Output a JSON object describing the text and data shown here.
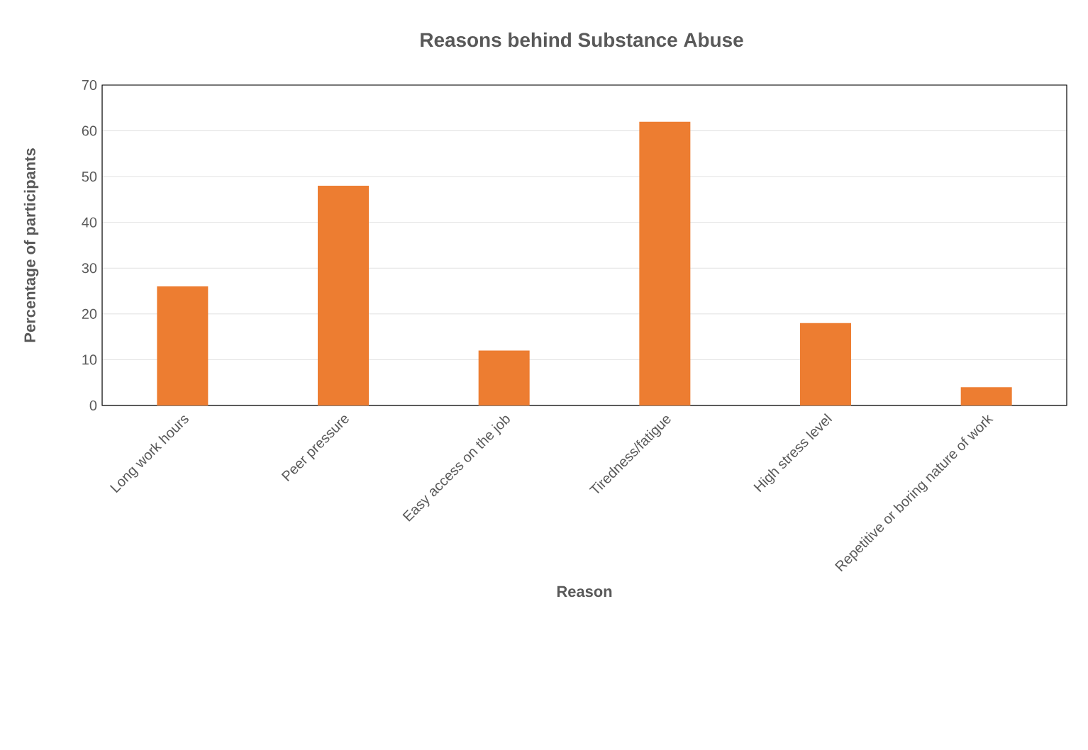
{
  "chart_data": {
    "type": "bar",
    "title": "Reasons behind Substance Abuse",
    "xlabel": "Reason",
    "ylabel": "Percentage of participants",
    "categories": [
      "Long work hours",
      "Peer pressure",
      "Easy access on the job",
      "Tiredness/fatigue",
      "High stress level",
      "Repetitive or boring nature of work"
    ],
    "values": [
      26,
      48,
      12,
      62,
      18,
      4
    ],
    "color": "#ed7d31",
    "ylim": [
      0,
      70
    ],
    "yticks": [
      0,
      10,
      20,
      30,
      40,
      50,
      60,
      70
    ],
    "grid": "y"
  }
}
